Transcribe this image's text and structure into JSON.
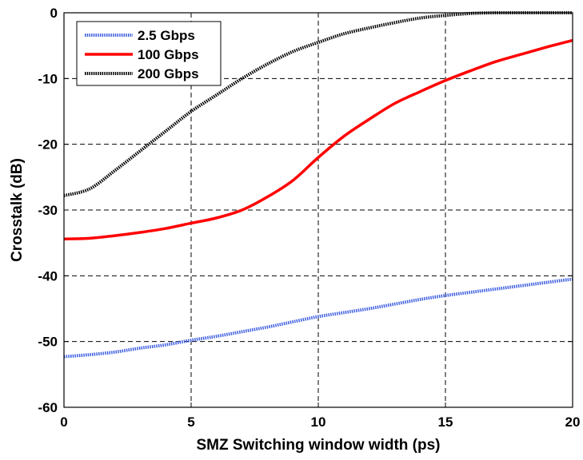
{
  "chart_data": {
    "type": "line",
    "title": "",
    "xlabel": "SMZ Switching window width (ps)",
    "ylabel": "Crosstalk (dB)",
    "xlim": [
      0,
      20
    ],
    "ylim": [
      -60,
      0
    ],
    "xticks": [
      "0",
      "5",
      "10",
      "15",
      "20"
    ],
    "yticks": [
      "0",
      "-10",
      "-20",
      "-30",
      "-40",
      "-50",
      "-60"
    ],
    "grid": true,
    "legend_position": "top-left",
    "x": [
      0,
      1,
      2,
      3,
      4,
      5,
      6,
      7,
      8,
      9,
      10,
      11,
      12,
      13,
      14,
      15,
      16,
      17,
      18,
      19,
      20
    ],
    "series": [
      {
        "name": "2.5 Gbps",
        "color": "#3f5fe0",
        "style": "dotted",
        "values": [
          -52.3,
          -52.0,
          -51.6,
          -51.0,
          -50.5,
          -49.8,
          -49.2,
          -48.5,
          -47.8,
          -47.0,
          -46.2,
          -45.6,
          -45.0,
          -44.3,
          -43.6,
          -43.0,
          -42.5,
          -42.0,
          -41.5,
          -41.0,
          -40.5
        ]
      },
      {
        "name": "100 Gbps",
        "color": "#ff0000",
        "style": "solid",
        "values": [
          -34.4,
          -34.3,
          -33.9,
          -33.4,
          -32.8,
          -32.0,
          -31.2,
          -30.0,
          -28.0,
          -25.5,
          -22.0,
          -18.8,
          -16.2,
          -13.8,
          -12.0,
          -10.3,
          -8.8,
          -7.4,
          -6.3,
          -5.2,
          -4.2
        ]
      },
      {
        "name": "200 Gbps",
        "color": "#000000",
        "style": "dotted",
        "values": [
          -27.8,
          -26.8,
          -24.0,
          -21.0,
          -18.0,
          -15.0,
          -12.5,
          -10.0,
          -7.8,
          -5.9,
          -4.5,
          -3.2,
          -2.3,
          -1.5,
          -0.8,
          -0.4,
          -0.1,
          0.0,
          0.0,
          0.0,
          0.0
        ]
      }
    ]
  }
}
